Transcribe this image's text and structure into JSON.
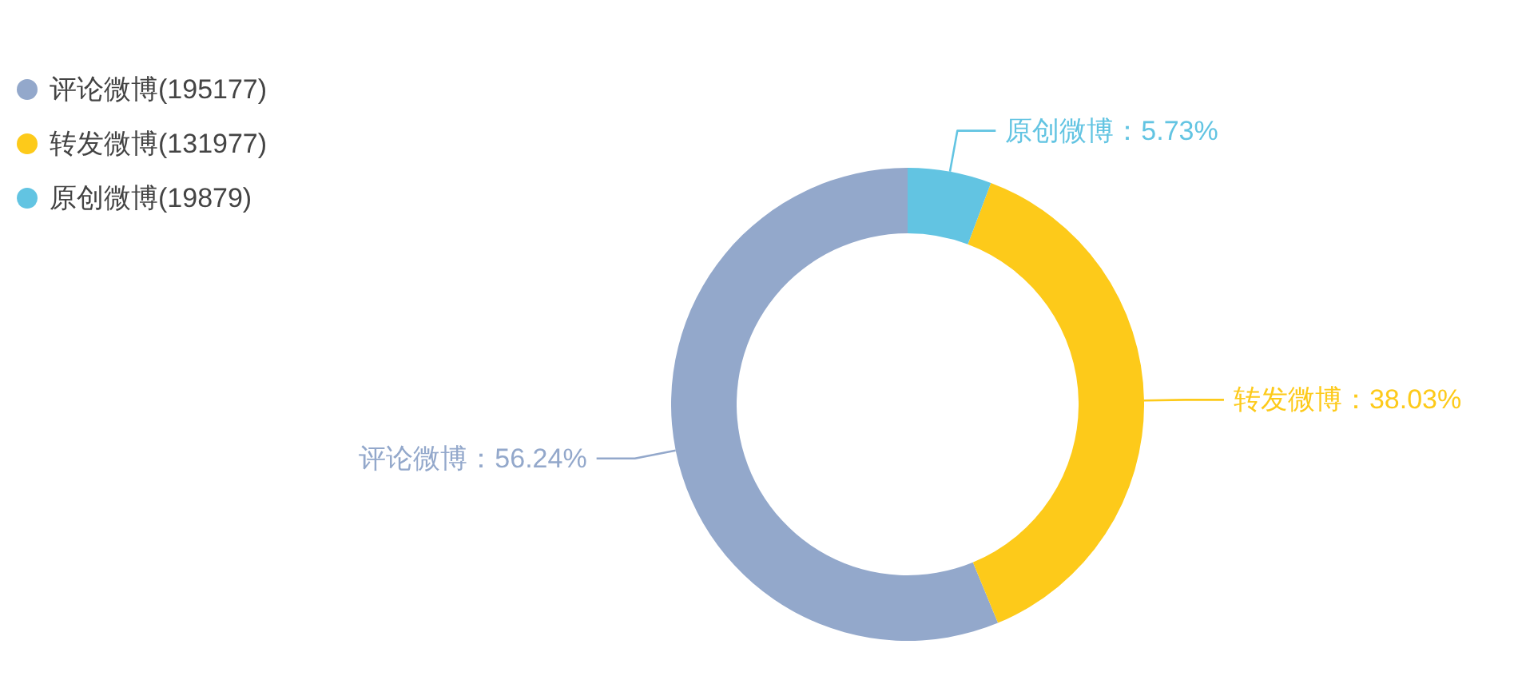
{
  "chart_data": {
    "type": "donut",
    "categories": [
      "评论微博(195177)",
      "转发微博(131977)",
      "原创微博(19879)"
    ],
    "values": [
      56.24,
      38.03,
      5.73
    ],
    "colors": [
      "#93a8cb",
      "#fdca1a",
      "#62c4e2"
    ],
    "value_labels": [
      "评论微博：56.24%",
      "转发微博：38.03%",
      "原创微博：5.73%"
    ],
    "legend": "top left"
  }
}
